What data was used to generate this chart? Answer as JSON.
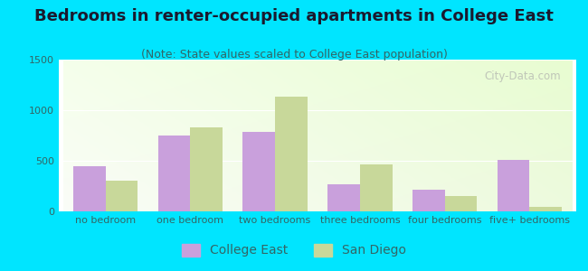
{
  "title": "Bedrooms in renter-occupied apartments in College East",
  "subtitle": "(Note: State values scaled to College East population)",
  "categories": [
    "no bedroom",
    "one bedroom",
    "two bedrooms",
    "three bedrooms",
    "four bedrooms",
    "five+ bedrooms"
  ],
  "college_east": [
    450,
    750,
    790,
    265,
    215,
    510
  ],
  "san_diego": [
    305,
    830,
    1130,
    465,
    155,
    45
  ],
  "college_east_color": "#c9a0dc",
  "san_diego_color": "#c8d89a",
  "ylim": [
    0,
    1500
  ],
  "yticks": [
    0,
    500,
    1000,
    1500
  ],
  "bar_width": 0.38,
  "background_outer": "#00e5ff",
  "title_fontsize": 13,
  "subtitle_fontsize": 9,
  "legend_fontsize": 10,
  "tick_fontsize": 8,
  "watermark": "City-Data.com",
  "title_color": "#1a1a2e",
  "subtitle_color": "#336666",
  "tick_color": "#336666"
}
